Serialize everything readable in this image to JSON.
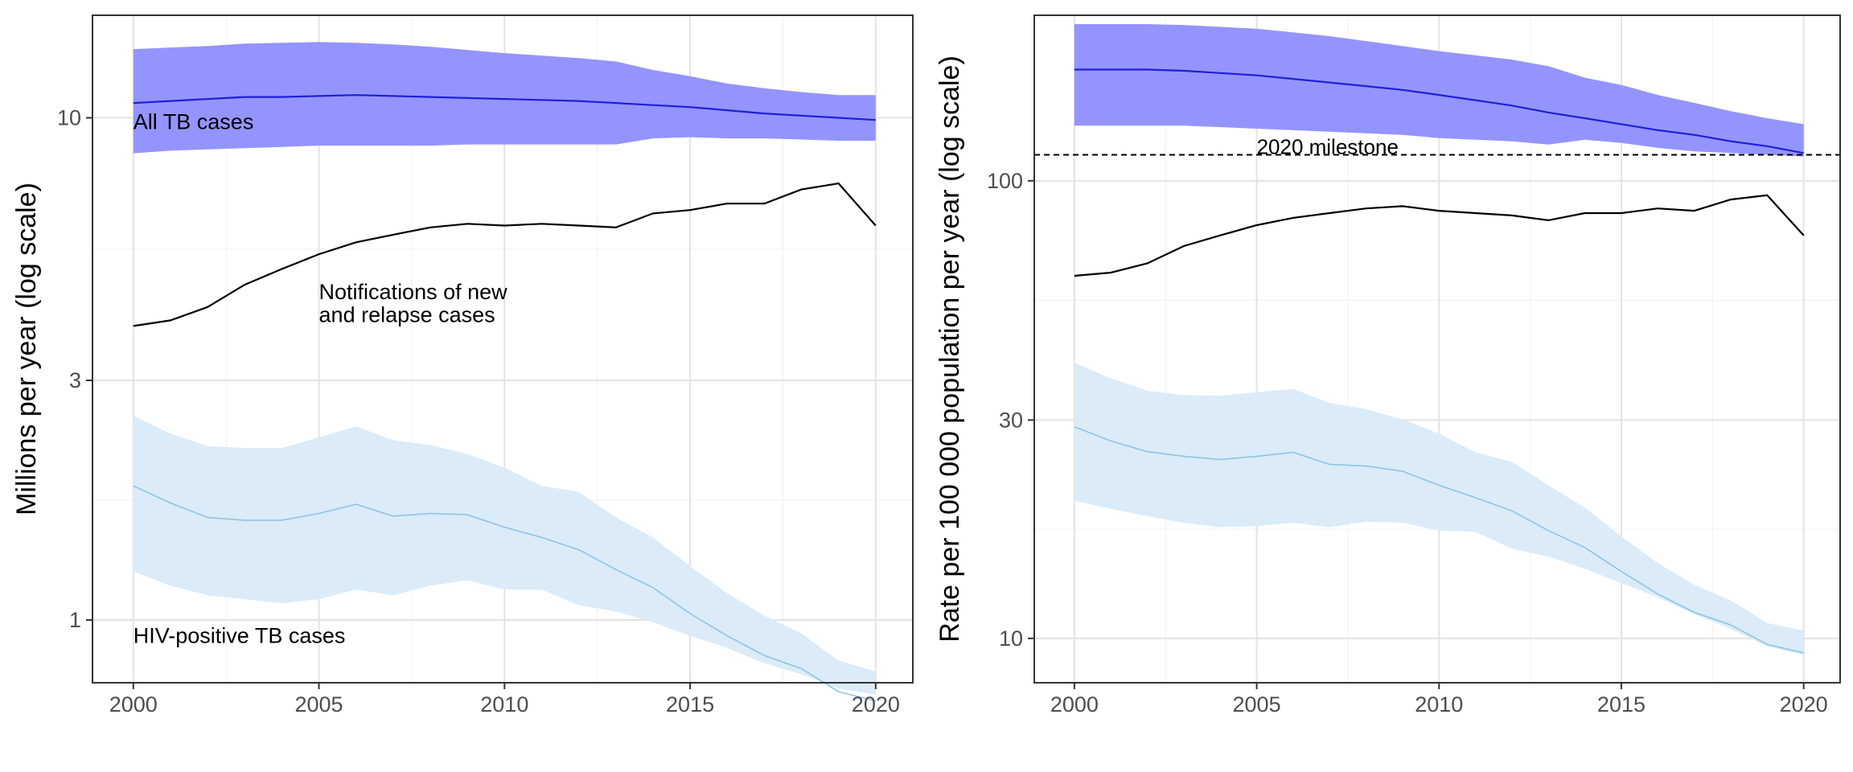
{
  "chart_data": [
    {
      "type": "line",
      "title": "",
      "xlabel": "",
      "ylabel": "Millions per year (log scale)",
      "y_scale": "log",
      "xlim": [
        1998.9,
        2021
      ],
      "ylim": [
        0.75,
        16
      ],
      "grid": true,
      "x_ticks": [
        2000,
        2005,
        2010,
        2015,
        2020
      ],
      "x_tick_labels": [
        "2000",
        "2005",
        "2010",
        "2015",
        "2020"
      ],
      "y_ticks": [
        1,
        3,
        10
      ],
      "y_tick_labels": [
        "1",
        "3",
        "10"
      ],
      "x": [
        2000,
        2001,
        2002,
        2003,
        2004,
        2005,
        2006,
        2007,
        2008,
        2009,
        2010,
        2011,
        2012,
        2013,
        2014,
        2015,
        2016,
        2017,
        2018,
        2019,
        2020
      ],
      "series": [
        {
          "name": "All TB cases",
          "kind": "band_line",
          "line_color": "#1f1fd6",
          "fill_color": "#9494ff",
          "values": [
            10.7,
            10.8,
            10.9,
            11.0,
            11.0,
            11.05,
            11.1,
            11.05,
            11.0,
            10.95,
            10.9,
            10.85,
            10.8,
            10.7,
            10.6,
            10.5,
            10.35,
            10.2,
            10.1,
            10.0,
            9.9
          ],
          "lo": [
            8.5,
            8.6,
            8.65,
            8.7,
            8.75,
            8.8,
            8.8,
            8.8,
            8.8,
            8.85,
            8.85,
            8.85,
            8.85,
            8.85,
            9.1,
            9.15,
            9.1,
            9.1,
            9.05,
            9.0,
            9.0
          ],
          "hi": [
            13.7,
            13.8,
            13.9,
            14.05,
            14.1,
            14.15,
            14.1,
            14.0,
            13.85,
            13.65,
            13.45,
            13.3,
            13.15,
            12.95,
            12.45,
            12.1,
            11.7,
            11.45,
            11.25,
            11.1,
            11.1
          ]
        },
        {
          "name": "Notifications of new and relapse cases",
          "kind": "line",
          "line_color": "#000000",
          "values": [
            3.85,
            3.95,
            4.2,
            4.65,
            5.0,
            5.35,
            5.65,
            5.85,
            6.05,
            6.15,
            6.1,
            6.15,
            6.1,
            6.05,
            6.45,
            6.55,
            6.75,
            6.75,
            7.2,
            7.4,
            6.1
          ]
        },
        {
          "name": "HIV-positive TB cases",
          "kind": "band_line",
          "line_color": "#8ec4e4",
          "fill_color": "#dbebf8",
          "values": [
            1.85,
            1.71,
            1.6,
            1.58,
            1.58,
            1.63,
            1.7,
            1.61,
            1.63,
            1.62,
            1.53,
            1.46,
            1.38,
            1.26,
            1.16,
            1.03,
            0.93,
            0.85,
            0.8,
            0.72,
            0.69
          ],
          "lo": [
            1.25,
            1.17,
            1.12,
            1.1,
            1.08,
            1.1,
            1.15,
            1.12,
            1.17,
            1.2,
            1.15,
            1.15,
            1.07,
            1.04,
            0.99,
            0.93,
            0.88,
            0.82,
            0.78,
            0.73,
            0.71
          ],
          "hi": [
            2.55,
            2.35,
            2.22,
            2.2,
            2.2,
            2.31,
            2.43,
            2.28,
            2.23,
            2.14,
            2.01,
            1.85,
            1.8,
            1.6,
            1.46,
            1.28,
            1.13,
            1.02,
            0.94,
            0.83,
            0.79
          ]
        }
      ],
      "annotations": [
        {
          "text": "All TB cases",
          "x": 2000,
          "y": 9.5
        },
        {
          "text": "Notifications of new",
          "x": 2005,
          "y": 4.35
        },
        {
          "text": "and relapse cases",
          "x": 2005,
          "y": 3.92
        },
        {
          "text": "HIV-positive TB cases",
          "x": 2000,
          "y": 0.9
        }
      ]
    },
    {
      "type": "line",
      "title": "",
      "xlabel": "",
      "ylabel": "Rate per 100 000 population per year (log scale)",
      "y_scale": "log",
      "xlim": [
        1998.9,
        2021
      ],
      "ylim": [
        8,
        230
      ],
      "grid": true,
      "x_ticks": [
        2000,
        2005,
        2010,
        2015,
        2020
      ],
      "x_tick_labels": [
        "2000",
        "2005",
        "2010",
        "2015",
        "2020"
      ],
      "y_ticks": [
        10,
        30,
        100
      ],
      "y_tick_labels": [
        "10",
        "30",
        "100"
      ],
      "x": [
        2000,
        2001,
        2002,
        2003,
        2004,
        2005,
        2006,
        2007,
        2008,
        2009,
        2010,
        2011,
        2012,
        2013,
        2014,
        2015,
        2016,
        2017,
        2018,
        2019,
        2020
      ],
      "series": [
        {
          "name": "All TB cases",
          "kind": "band_line",
          "line_color": "#1f1fd6",
          "fill_color": "#9494ff",
          "values": [
            175,
            175,
            175,
            174,
            172,
            170,
            167,
            164,
            161,
            158,
            154,
            150,
            146,
            141,
            137,
            133,
            129,
            126,
            122,
            119,
            115
          ],
          "lo": [
            132,
            132,
            132,
            132,
            131,
            130,
            129,
            128,
            127,
            126,
            124,
            123,
            122,
            120,
            123,
            121,
            118,
            116,
            115,
            114,
            113
          ],
          "hi": [
            220,
            220,
            220,
            219,
            217,
            215,
            211,
            207,
            202,
            197,
            192,
            188,
            184,
            178,
            168,
            162,
            154,
            148,
            142,
            137,
            133
          ]
        },
        {
          "name": "Notifications",
          "kind": "line",
          "line_color": "#000000",
          "values": [
            62,
            63,
            66,
            72,
            76,
            80,
            83,
            85,
            87,
            88,
            86,
            85,
            84,
            82,
            85,
            85,
            87,
            86,
            91,
            93,
            76
          ]
        },
        {
          "name": "HIV-positive TB cases",
          "kind": "band_line",
          "line_color": "#8ec4e4",
          "fill_color": "#dbebf8",
          "values": [
            29,
            27,
            25.6,
            25,
            24.6,
            25,
            25.5,
            24,
            23.8,
            23.2,
            21.6,
            20.3,
            19,
            17.2,
            15.8,
            14,
            12.5,
            11.4,
            10.7,
            9.7,
            9.3
          ],
          "lo": [
            20,
            19.2,
            18.5,
            17.9,
            17.5,
            17.6,
            17.9,
            17.5,
            18,
            17.9,
            17.2,
            17.1,
            15.7,
            15.1,
            14.2,
            13.2,
            12.3,
            11.3,
            10.5,
            9.6,
            9.2
          ],
          "hi": [
            40,
            37,
            34.8,
            34,
            33.9,
            34.5,
            35.1,
            32.7,
            31.7,
            30.1,
            28,
            25.5,
            24.3,
            21.6,
            19.3,
            16.7,
            14.6,
            13.1,
            12.1,
            10.8,
            10.4
          ]
        }
      ],
      "reference_lines": [
        {
          "label": "2020 milestone",
          "y": 114,
          "style": "dashed",
          "color": "#000000"
        }
      ]
    }
  ]
}
